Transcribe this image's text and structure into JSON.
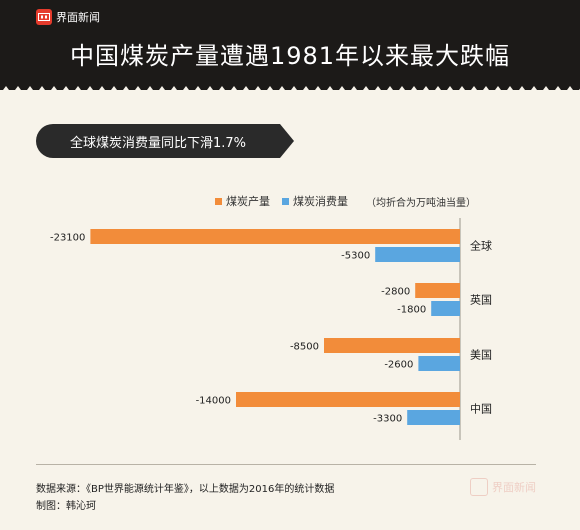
{
  "header": {
    "logo_text": "界面新闻",
    "title": "中国煤炭产量遭遇1981年以来最大跌幅"
  },
  "subtitle": "全球煤炭消费量同比下滑1.7%",
  "legend": {
    "unit_note": "（均折合为万吨油当量）"
  },
  "colors": {
    "production": "#f28c3a",
    "consumption": "#5aa6e0"
  },
  "chart_data": {
    "type": "bar",
    "orientation": "horizontal",
    "categories": [
      "全球",
      "英国",
      "美国",
      "中国"
    ],
    "series": [
      {
        "name": "煤炭产量",
        "values": [
          -23100,
          -2800,
          -8500,
          -14000
        ],
        "labels": [
          "-23100",
          "-2800",
          "-8500",
          "-14000"
        ]
      },
      {
        "name": "煤炭消费量",
        "values": [
          -5300,
          -1800,
          -2600,
          -3300
        ],
        "labels": [
          "-5300",
          "-1800",
          "-2600",
          "-3300"
        ]
      }
    ],
    "xlim": [
      -25000,
      0
    ],
    "grid": false,
    "legend_position": "top"
  },
  "footer": {
    "source": "数据来源：《BP世界能源统计年鉴》，以上数据为2016年的统计数据",
    "author": "制图：韩沁珂"
  },
  "watermark_text": "界面新闻"
}
